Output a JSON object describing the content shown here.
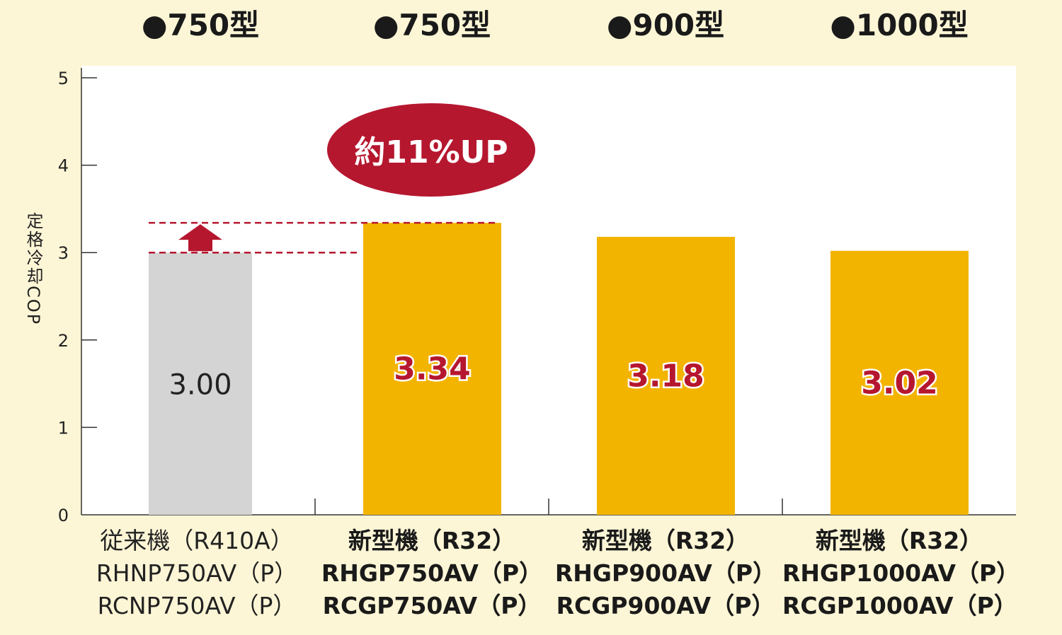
{
  "headers": [
    "●750型",
    "●750型",
    "●900型",
    "●1000型"
  ],
  "badge": {
    "text": "約11%UP"
  },
  "colors": {
    "old_bar": "#d4d4d4",
    "new_bar": "#f3b400",
    "accent": "#b5172f",
    "background": "#fdf6d6"
  },
  "chart_data": {
    "type": "bar",
    "ylabel": "定格冷却COP",
    "ylim": [
      0,
      5
    ],
    "yticks": [
      "0",
      "1",
      "2",
      "3",
      "4",
      "5"
    ],
    "categories": [
      [
        "従来機（R410A）",
        "RHNP750AV（P）",
        "RCNP750AV（P）"
      ],
      [
        "新型機（R32）",
        "RHGP750AV（P）",
        "RCGP750AV（P）"
      ],
      [
        "新型機（R32）",
        "RHGP900AV（P）",
        "RCGP900AV（P）"
      ],
      [
        "新型機（R32）",
        "RHGP1000AV（P）",
        "RCGP1000AV（P）"
      ]
    ],
    "values": [
      3.0,
      3.34,
      3.18,
      3.02
    ],
    "value_labels": [
      "3.00",
      "3.34",
      "3.18",
      "3.02"
    ]
  }
}
